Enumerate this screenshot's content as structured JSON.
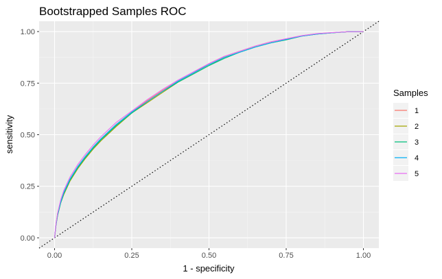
{
  "chart_data": {
    "type": "line",
    "title": "Bootstrapped Samples ROC",
    "xlabel": "1 - specificity",
    "ylabel": "sensitivity",
    "xlim": [
      -0.05,
      1.05
    ],
    "ylim": [
      -0.05,
      1.05
    ],
    "x_ticks": [
      "0.00",
      "0.25",
      "0.50",
      "0.75",
      "1.00"
    ],
    "y_ticks": [
      "0.00",
      "0.25",
      "0.50",
      "0.75",
      "1.00"
    ],
    "x_tick_values": [
      0,
      0.25,
      0.5,
      0.75,
      1.0
    ],
    "y_tick_values": [
      0,
      0.25,
      0.5,
      0.75,
      1.0
    ],
    "grid": true,
    "legend": {
      "title": "Samples",
      "position": "right"
    },
    "reference_line": {
      "style": "dotted",
      "color": "#000000",
      "x": [
        -0.05,
        1.05
      ],
      "y": [
        -0.05,
        1.05
      ]
    },
    "series": [
      {
        "name": "1",
        "color": "#F8766D",
        "x": [
          0,
          0.005,
          0.01,
          0.02,
          0.03,
          0.05,
          0.075,
          0.1,
          0.125,
          0.15,
          0.2,
          0.25,
          0.3,
          0.35,
          0.4,
          0.45,
          0.5,
          0.55,
          0.6,
          0.65,
          0.7,
          0.75,
          0.8,
          0.85,
          0.9,
          0.95,
          1.0
        ],
        "y": [
          0,
          0.07,
          0.12,
          0.18,
          0.22,
          0.285,
          0.345,
          0.395,
          0.44,
          0.48,
          0.55,
          0.61,
          0.665,
          0.715,
          0.76,
          0.8,
          0.845,
          0.88,
          0.905,
          0.93,
          0.95,
          0.965,
          0.98,
          0.99,
          0.995,
          0.999,
          1.0
        ]
      },
      {
        "name": "2",
        "color": "#A3A500",
        "x": [
          0,
          0.005,
          0.01,
          0.02,
          0.03,
          0.05,
          0.075,
          0.1,
          0.125,
          0.15,
          0.2,
          0.25,
          0.3,
          0.35,
          0.4,
          0.45,
          0.5,
          0.55,
          0.6,
          0.65,
          0.7,
          0.75,
          0.8,
          0.85,
          0.9,
          0.95,
          1.0
        ],
        "y": [
          0,
          0.065,
          0.11,
          0.17,
          0.21,
          0.275,
          0.335,
          0.385,
          0.43,
          0.47,
          0.54,
          0.605,
          0.655,
          0.705,
          0.755,
          0.795,
          0.835,
          0.875,
          0.9,
          0.925,
          0.945,
          0.96,
          0.978,
          0.988,
          0.994,
          0.999,
          1.0
        ]
      },
      {
        "name": "3",
        "color": "#00BF7D",
        "x": [
          0,
          0.005,
          0.01,
          0.02,
          0.03,
          0.05,
          0.075,
          0.1,
          0.125,
          0.15,
          0.2,
          0.25,
          0.3,
          0.35,
          0.4,
          0.45,
          0.5,
          0.55,
          0.6,
          0.65,
          0.7,
          0.75,
          0.8,
          0.85,
          0.9,
          0.95,
          1.0
        ],
        "y": [
          0,
          0.065,
          0.11,
          0.17,
          0.215,
          0.28,
          0.34,
          0.39,
          0.435,
          0.475,
          0.545,
          0.605,
          0.66,
          0.71,
          0.755,
          0.795,
          0.835,
          0.87,
          0.9,
          0.925,
          0.945,
          0.96,
          0.978,
          0.988,
          0.994,
          0.999,
          1.0
        ]
      },
      {
        "name": "4",
        "color": "#00B0F6",
        "x": [
          0,
          0.005,
          0.01,
          0.02,
          0.03,
          0.05,
          0.075,
          0.1,
          0.125,
          0.15,
          0.2,
          0.25,
          0.3,
          0.35,
          0.4,
          0.45,
          0.5,
          0.55,
          0.6,
          0.65,
          0.7,
          0.75,
          0.8,
          0.85,
          0.9,
          0.95,
          1.0
        ],
        "y": [
          0,
          0.068,
          0.115,
          0.175,
          0.22,
          0.285,
          0.345,
          0.395,
          0.44,
          0.48,
          0.55,
          0.61,
          0.66,
          0.71,
          0.76,
          0.8,
          0.84,
          0.875,
          0.9,
          0.925,
          0.945,
          0.962,
          0.978,
          0.988,
          0.994,
          0.999,
          1.0
        ]
      },
      {
        "name": "5",
        "color": "#E76BF3",
        "x": [
          0,
          0.005,
          0.01,
          0.02,
          0.03,
          0.05,
          0.075,
          0.1,
          0.125,
          0.15,
          0.2,
          0.25,
          0.3,
          0.35,
          0.4,
          0.45,
          0.5,
          0.55,
          0.6,
          0.65,
          0.7,
          0.75,
          0.8,
          0.85,
          0.9,
          0.95,
          1.0
        ],
        "y": [
          0,
          0.072,
          0.12,
          0.185,
          0.23,
          0.295,
          0.355,
          0.405,
          0.45,
          0.49,
          0.56,
          0.615,
          0.67,
          0.72,
          0.765,
          0.805,
          0.845,
          0.88,
          0.905,
          0.93,
          0.95,
          0.965,
          0.98,
          0.99,
          0.995,
          0.999,
          1.0
        ]
      }
    ]
  }
}
